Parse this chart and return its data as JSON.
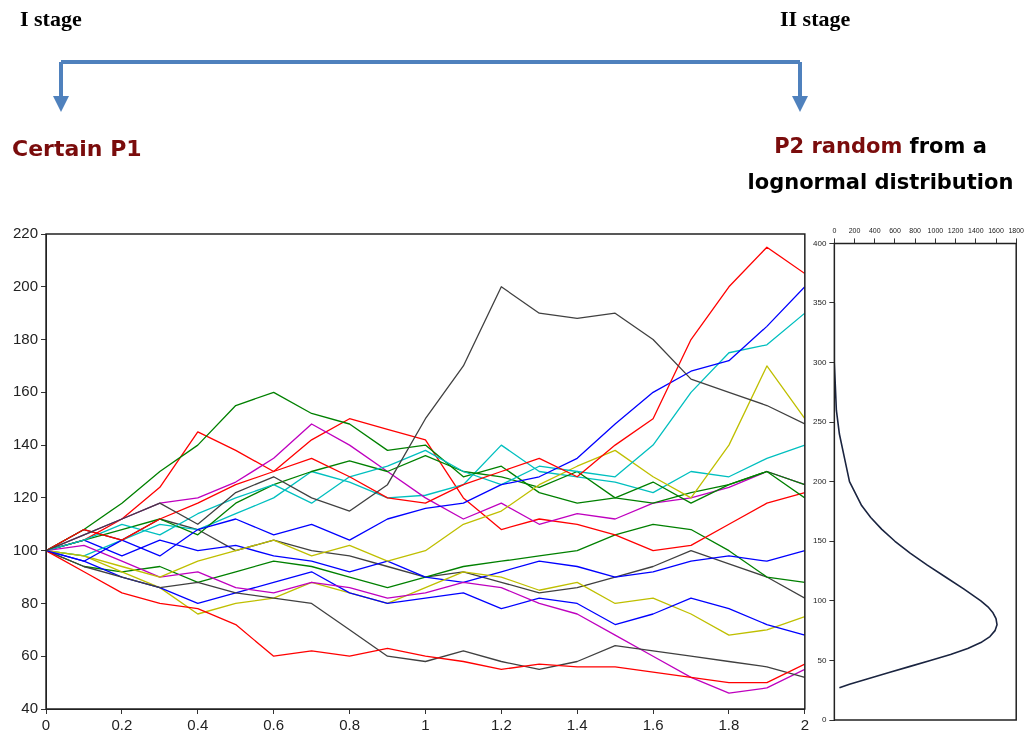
{
  "chart_data": [
    {
      "type": "line",
      "annotations": [
        "I stage",
        "II stage",
        "Certain P1",
        "P2 random",
        "from a lognormal distribution"
      ],
      "x": [
        0,
        0.1,
        0.2,
        0.3,
        0.4,
        0.5,
        0.6,
        0.7,
        0.8,
        0.9,
        1.0,
        1.1,
        1.2,
        1.3,
        1.4,
        1.5,
        1.6,
        1.7,
        1.8,
        1.9,
        2.0
      ],
      "xlim": [
        0,
        2
      ],
      "xticks": [
        0,
        0.2,
        0.4,
        0.6,
        0.8,
        1,
        1.2,
        1.4,
        1.6,
        1.8,
        2
      ],
      "ylim": [
        40,
        220
      ],
      "yticks": [
        40,
        60,
        80,
        100,
        120,
        140,
        160,
        180,
        200,
        220
      ],
      "series": [
        {
          "color": "#404040",
          "values": [
            100,
            106,
            112,
            118,
            110,
            122,
            128,
            120,
            115,
            125,
            150,
            170,
            200,
            190,
            188,
            190,
            180,
            165,
            160,
            155,
            148
          ]
        },
        {
          "color": "#ff0000",
          "values": [
            100,
            108,
            104,
            112,
            118,
            125,
            130,
            135,
            128,
            120,
            118,
            125,
            130,
            135,
            128,
            140,
            150,
            180,
            200,
            215,
            205
          ]
        },
        {
          "color": "#0000ff",
          "values": [
            100,
            96,
            104,
            98,
            108,
            112,
            106,
            110,
            104,
            112,
            116,
            118,
            125,
            128,
            135,
            148,
            160,
            168,
            172,
            185,
            200
          ]
        },
        {
          "color": "#00bfbf",
          "values": [
            100,
            104,
            110,
            106,
            114,
            120,
            125,
            118,
            128,
            132,
            138,
            130,
            125,
            132,
            130,
            128,
            140,
            160,
            175,
            178,
            190
          ]
        },
        {
          "color": "#bfbf00",
          "values": [
            100,
            98,
            94,
            90,
            96,
            100,
            104,
            98,
            102,
            96,
            100,
            110,
            115,
            125,
            132,
            138,
            128,
            120,
            140,
            170,
            150
          ]
        },
        {
          "color": "#008000",
          "values": [
            100,
            108,
            118,
            130,
            140,
            155,
            160,
            152,
            148,
            138,
            140,
            128,
            132,
            122,
            118,
            120,
            126,
            118,
            125,
            130,
            125
          ]
        },
        {
          "color": "#ff0000",
          "values": [
            100,
            92,
            84,
            80,
            78,
            72,
            60,
            62,
            60,
            63,
            60,
            58,
            55,
            57,
            56,
            56,
            54,
            52,
            50,
            50,
            57
          ]
        },
        {
          "color": "#404040",
          "values": [
            100,
            94,
            90,
            86,
            88,
            84,
            82,
            80,
            70,
            60,
            58,
            62,
            58,
            55,
            58,
            64,
            62,
            60,
            58,
            56,
            52
          ]
        },
        {
          "color": "#bf00bf",
          "values": [
            100,
            102,
            96,
            90,
            92,
            86,
            84,
            88,
            86,
            82,
            84,
            88,
            86,
            80,
            76,
            68,
            60,
            52,
            46,
            48,
            55
          ]
        },
        {
          "color": "#0000ff",
          "values": [
            100,
            96,
            90,
            86,
            80,
            84,
            88,
            92,
            84,
            80,
            82,
            84,
            78,
            82,
            80,
            72,
            76,
            82,
            78,
            72,
            68
          ]
        },
        {
          "color": "#008000",
          "values": [
            100,
            104,
            108,
            112,
            106,
            118,
            125,
            130,
            134,
            130,
            136,
            130,
            128,
            124,
            130,
            120,
            118,
            122,
            125,
            130,
            120
          ]
        },
        {
          "color": "#bf00bf",
          "values": [
            100,
            106,
            112,
            118,
            120,
            126,
            135,
            148,
            140,
            130,
            120,
            112,
            118,
            110,
            114,
            112,
            118,
            120,
            124,
            130,
            125
          ]
        },
        {
          "color": "#00bfbf",
          "values": [
            100,
            98,
            104,
            110,
            108,
            114,
            120,
            130,
            126,
            120,
            121,
            125,
            140,
            130,
            128,
            126,
            122,
            130,
            128,
            135,
            140
          ]
        },
        {
          "color": "#ff0000",
          "values": [
            100,
            104,
            112,
            124,
            145,
            138,
            130,
            142,
            150,
            146,
            142,
            120,
            108,
            112,
            110,
            106,
            100,
            102,
            110,
            118,
            122
          ]
        },
        {
          "color": "#bfbf00",
          "values": [
            100,
            98,
            92,
            86,
            76,
            80,
            82,
            88,
            84,
            80,
            86,
            92,
            90,
            85,
            88,
            80,
            82,
            76,
            68,
            70,
            75
          ]
        },
        {
          "color": "#0000ff",
          "values": [
            100,
            104,
            98,
            104,
            100,
            102,
            98,
            96,
            92,
            96,
            90,
            88,
            92,
            96,
            94,
            90,
            92,
            96,
            98,
            96,
            100
          ]
        },
        {
          "color": "#008000",
          "values": [
            100,
            94,
            92,
            94,
            88,
            92,
            96,
            94,
            90,
            86,
            90,
            94,
            96,
            98,
            100,
            106,
            110,
            108,
            100,
            90,
            88
          ]
        },
        {
          "color": "#404040",
          "values": [
            100,
            108,
            104,
            112,
            108,
            100,
            104,
            100,
            98,
            94,
            90,
            92,
            88,
            84,
            86,
            90,
            94,
            100,
            95,
            90,
            82
          ]
        }
      ]
    },
    {
      "type": "line",
      "orientation": "horizontal",
      "x": [
        27,
        30,
        35,
        40,
        45,
        50,
        55,
        60,
        65,
        70,
        75,
        80,
        85,
        90,
        95,
        100,
        110,
        120,
        130,
        140,
        150,
        160,
        170,
        180,
        200,
        220,
        240,
        260,
        280,
        300,
        330,
        350
      ],
      "xlim": [
        0,
        1800
      ],
      "xticks": [
        0,
        200,
        400,
        600,
        800,
        1000,
        1200,
        1400,
        1600,
        1800
      ],
      "ylim": [
        0,
        400
      ],
      "yticks": [
        0,
        50,
        100,
        150,
        200,
        250,
        300,
        350,
        400
      ],
      "series": [
        {
          "color": "#1a2440",
          "values": [
            50,
            150,
            350,
            550,
            750,
            950,
            1150,
            1320,
            1450,
            1540,
            1590,
            1610,
            1600,
            1570,
            1520,
            1450,
            1280,
            1100,
            920,
            750,
            600,
            470,
            360,
            270,
            150,
            100,
            50,
            20,
            10,
            0,
            0,
            0
          ]
        }
      ]
    }
  ]
}
